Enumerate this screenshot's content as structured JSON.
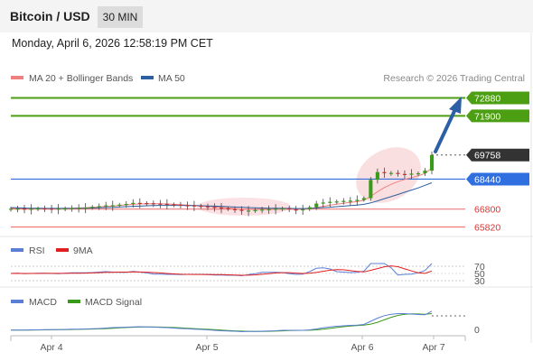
{
  "header": {
    "title": "Bitcoin / USD",
    "timeframe": "30 MIN"
  },
  "datetime": "Monday, April 6, 2026 12:58:19 PM CET",
  "credit": "Research © 2026 Trading Central",
  "legend_main": [
    {
      "label": "MA 20 + Bollinger Bands",
      "color": "#f08080"
    },
    {
      "label": "MA 50",
      "color": "#2e5f9e"
    }
  ],
  "legend_rsi": [
    {
      "label": "RSI",
      "color": "#5b7fd6"
    },
    {
      "label": "9MA",
      "color": "#e02020"
    }
  ],
  "legend_macd": [
    {
      "label": "MACD",
      "color": "#5b7fd6"
    },
    {
      "label": "MACD Signal",
      "color": "#3a9a1a"
    }
  ],
  "colors": {
    "resistance": "#4c9e12",
    "current": "#333333",
    "pivot": "#2f6fe0",
    "support": "#ef7a7a",
    "arrow": "#2d5fa6"
  },
  "levels": [
    {
      "name": "resistance-2",
      "value": 72880,
      "label": "72880",
      "kind": "resistance"
    },
    {
      "name": "resistance-1",
      "value": 71900,
      "label": "71900",
      "kind": "resistance"
    },
    {
      "name": "last-price",
      "value": 69758,
      "label": "69758",
      "kind": "current"
    },
    {
      "name": "pivot",
      "value": 68440,
      "label": "68440",
      "kind": "pivot"
    },
    {
      "name": "support-1",
      "value": 66800,
      "label": "66800",
      "kind": "support"
    },
    {
      "name": "support-2",
      "value": 65820,
      "label": "65820",
      "kind": "support"
    }
  ],
  "rsi_ticks": [
    "70",
    "50",
    "30"
  ],
  "macd_ticks": [
    "0"
  ],
  "x_ticks": [
    "Apr 4",
    "Apr 5",
    "Apr 6",
    "Apr 7"
  ],
  "chart_data": {
    "type": "line",
    "xlabel": "",
    "ylabel": "",
    "ylim": [
      65500,
      73300
    ],
    "grid": false,
    "legend": "top-left",
    "x": [
      0,
      2,
      4,
      6,
      8,
      10,
      12,
      14,
      16,
      18,
      20,
      22,
      24,
      26,
      28,
      30,
      32,
      34,
      36,
      38,
      40,
      42,
      44,
      46,
      48,
      50,
      52,
      54,
      56,
      58,
      60,
      62,
      64,
      66,
      68,
      70,
      72,
      74,
      76,
      78,
      80,
      82,
      84,
      86,
      88,
      90,
      92,
      94,
      96,
      98,
      100,
      102,
      104,
      106,
      108,
      110,
      112,
      114,
      116,
      118,
      120,
      122,
      124
    ],
    "series": [
      {
        "name": "",
        "values": [
          66820,
          66830,
          66810,
          66820,
          66840,
          66830,
          66820,
          66830,
          66840,
          66860,
          66870,
          66880,
          66920,
          66960,
          67000,
          67010,
          67040,
          67080,
          67140,
          67130,
          67120,
          67100,
          67090,
          67060,
          67040,
          67010,
          67000,
          66980,
          66950,
          66920,
          66880,
          66850,
          66800,
          66760,
          66700,
          66720,
          66750,
          66780,
          66800,
          66820,
          66840,
          66780,
          66760,
          66790,
          66900,
          67100,
          67160,
          67200,
          67220,
          67250,
          67260,
          67300,
          67400,
          68400,
          68820,
          68760,
          68780,
          68720,
          68700,
          68740,
          68760,
          68900,
          69760
        ]
      },
      {
        "name": "MA 20",
        "values": [
          66850,
          66840,
          66830,
          66830,
          66830,
          66830,
          66830,
          66830,
          66840,
          66850,
          66860,
          66870,
          66890,
          66910,
          66940,
          66970,
          67000,
          67030,
          67060,
          67080,
          67090,
          67090,
          67090,
          67080,
          67060,
          67040,
          67020,
          67000,
          66980,
          66950,
          66920,
          66890,
          66860,
          66830,
          66800,
          66790,
          66780,
          66780,
          66780,
          66790,
          66800,
          66800,
          66790,
          66790,
          66820,
          66880,
          66950,
          67010,
          67070,
          67120,
          67170,
          67210,
          67280,
          67500,
          67750,
          67980,
          68150,
          68300,
          68420,
          68520,
          68620,
          68750,
          69050
        ]
      },
      {
        "name": "MA 50",
        "values": [
          66880,
          66870,
          66860,
          66850,
          66850,
          66840,
          66840,
          66840,
          66840,
          66840,
          66850,
          66850,
          66860,
          66870,
          66880,
          66890,
          66910,
          66930,
          66950,
          66960,
          66980,
          66990,
          67000,
          67000,
          67000,
          67000,
          66990,
          66990,
          66980,
          66970,
          66960,
          66950,
          66930,
          66910,
          66900,
          66880,
          66870,
          66860,
          66850,
          66850,
          66840,
          66840,
          66830,
          66830,
          66840,
          66860,
          66880,
          66900,
          66930,
          66960,
          66990,
          67020,
          67060,
          67140,
          67250,
          67370,
          67480,
          67600,
          67720,
          67840,
          67960,
          68100,
          68240
        ]
      }
    ]
  }
}
